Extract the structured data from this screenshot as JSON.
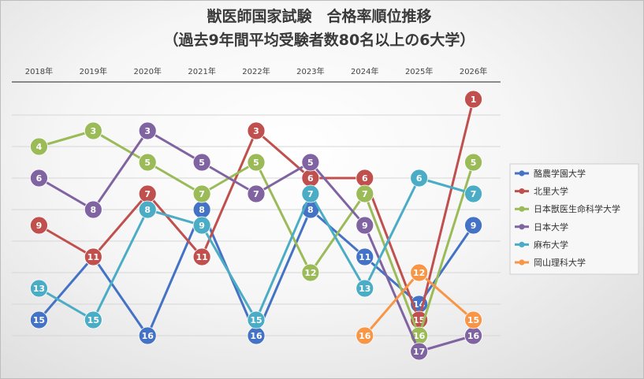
{
  "chart_data": {
    "type": "line",
    "title": "獣医師国家試験　合格率順位推移",
    "subtitle": "（過去9年間平均受験者数80名以上の6大学）",
    "categories": [
      "2018年",
      "2019年",
      "2020年",
      "2021年",
      "2022年",
      "2023年",
      "2024年",
      "2025年",
      "2026年"
    ],
    "y_reversed": true,
    "ylim": [
      1,
      17
    ],
    "grid": true,
    "legend_position": "right",
    "series": [
      {
        "name": "酪農学園大学",
        "color": "#4472c4",
        "values": [
          15,
          11,
          16,
          8,
          16,
          8,
          11,
          14,
          9
        ]
      },
      {
        "name": "北里大学",
        "color": "#c0504d",
        "values": [
          9,
          11,
          7,
          11,
          3,
          6,
          6,
          15,
          1
        ]
      },
      {
        "name": "日本獣医生命科学大学",
        "color": "#9bbb59",
        "values": [
          4,
          3,
          5,
          7,
          5,
          12,
          7,
          16,
          5
        ]
      },
      {
        "name": "日本大学",
        "color": "#8064a2",
        "values": [
          6,
          8,
          3,
          5,
          7,
          5,
          9,
          17,
          16
        ]
      },
      {
        "name": "麻布大学",
        "color": "#4bacc6",
        "values": [
          13,
          15,
          8,
          9,
          15,
          7,
          13,
          6,
          7
        ]
      },
      {
        "name": "岡山理科大学",
        "color": "#f79646",
        "values": [
          null,
          null,
          null,
          null,
          null,
          null,
          16,
          12,
          15
        ]
      }
    ]
  }
}
